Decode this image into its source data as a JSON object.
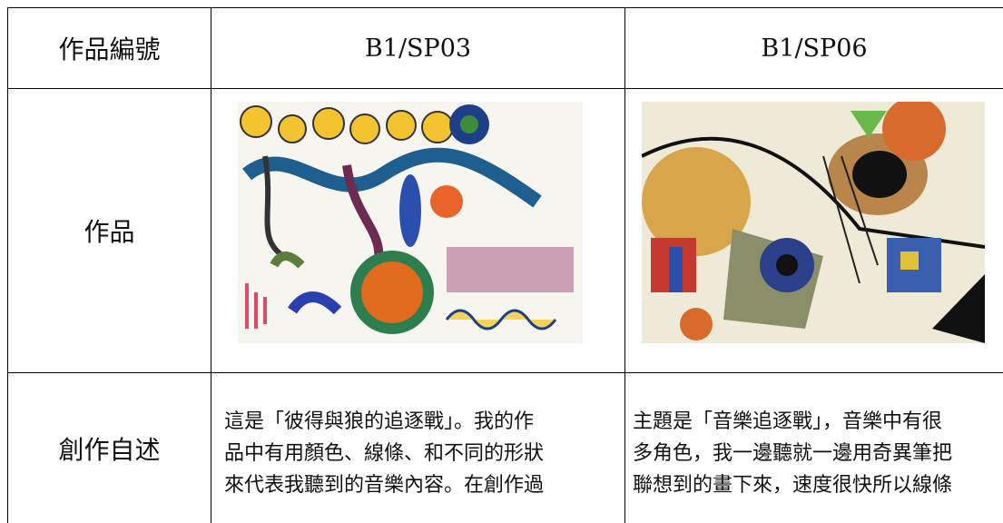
{
  "table": {
    "headers": [
      "作品編號",
      "B1/SP03",
      "B1/SP06"
    ],
    "rows": [
      [
        "作品"
      ],
      [
        "創作自述",
        [
          "這是「彼得與狼的追逐戰」。我的作",
          "品中有用顏色、線條、和不同的形狀",
          "來代表我聽到的音樂內容。在創作過"
        ],
        [
          "主題是「音樂追逐戰」，音樂中有很",
          "多角色，我一邊聽就一邊用奇異筆把",
          "聯想到的畫下來，速度很快所以線條"
        ]
      ]
    ]
  }
}
